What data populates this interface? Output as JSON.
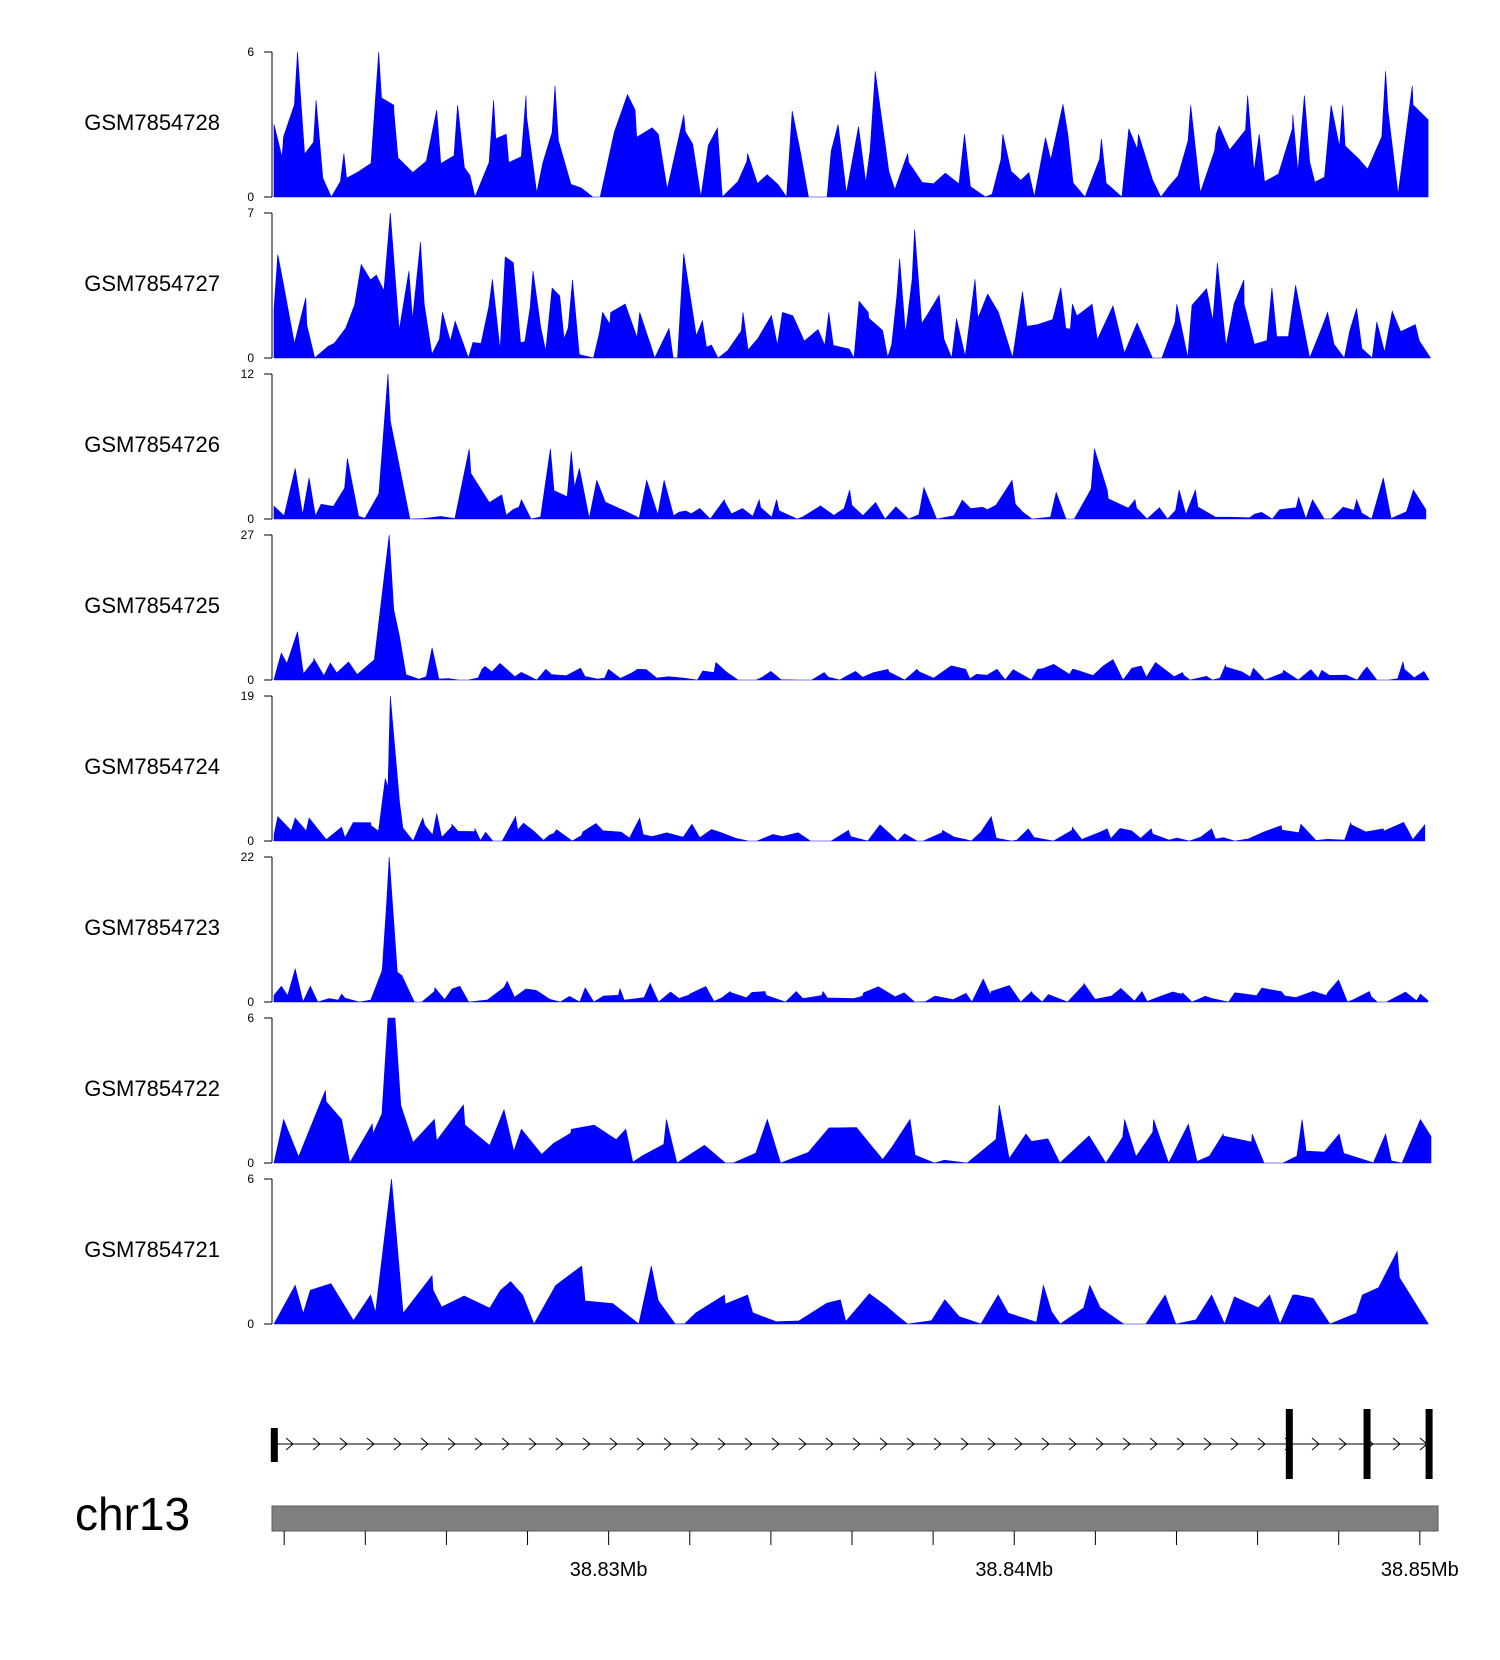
{
  "chart_data": {
    "type": "area",
    "colors": {
      "signal": "#0000ff",
      "axis": "#000000",
      "ideogram": "#808080",
      "gene": "#000000"
    },
    "chromosome": "chr13",
    "x_range_mb": [
      38.8217,
      38.8503
    ],
    "position_ticks_mb": [
      38.822,
      38.824,
      38.826,
      38.828,
      38.83,
      38.832,
      38.834,
      38.836,
      38.838,
      38.84,
      38.842,
      38.844,
      38.846,
      38.848,
      38.85
    ],
    "position_labels": [
      {
        "mb": 38.83,
        "label": "38.83Mb"
      },
      {
        "mb": 38.84,
        "label": "38.84Mb"
      },
      {
        "mb": 38.85,
        "label": "38.85Mb"
      }
    ],
    "tracks": [
      {
        "name": "GSM7854728",
        "ymax": 6,
        "ymin": 0,
        "ymax_label": "6",
        "ymin_label": "0",
        "profile": "dense",
        "peaks": [
          [
            0.01,
            2.5
          ],
          [
            0.022,
            6
          ],
          [
            0.038,
            4
          ],
          [
            0.062,
            1.8
          ],
          [
            0.092,
            6
          ],
          [
            0.105,
            3.8
          ],
          [
            0.142,
            3.6
          ],
          [
            0.16,
            3.8
          ],
          [
            0.191,
            4
          ],
          [
            0.202,
            2.6
          ],
          [
            0.219,
            4.2
          ],
          [
            0.244,
            4.6
          ],
          [
            0.313,
            3.6
          ],
          [
            0.333,
            2.6
          ],
          [
            0.355,
            3.4
          ],
          [
            0.41,
            1.8
          ],
          [
            0.488,
            3
          ],
          [
            0.52,
            5.2
          ],
          [
            0.548,
            1.8
          ],
          [
            0.597,
            2.6
          ],
          [
            0.63,
            2.6
          ],
          [
            0.686,
            2.6
          ],
          [
            0.715,
            2.4
          ],
          [
            0.747,
            2.6
          ],
          [
            0.792,
            3.8
          ],
          [
            0.814,
            2.6
          ],
          [
            0.841,
            4.2
          ],
          [
            0.851,
            2.6
          ],
          [
            0.88,
            3.4
          ],
          [
            0.89,
            4.2
          ],
          [
            0.913,
            3.8
          ],
          [
            0.923,
            3.8
          ],
          [
            0.96,
            5.2
          ],
          [
            0.983,
            4.6
          ]
        ]
      },
      {
        "name": "GSM7854727",
        "ymax": 7,
        "ymin": 0,
        "ymax_label": "7",
        "ymin_label": "0",
        "profile": "dense",
        "peaks": [
          [
            0.005,
            5
          ],
          [
            0.03,
            1.6
          ],
          [
            0.09,
            4
          ],
          [
            0.102,
            7
          ],
          [
            0.118,
            4.2
          ],
          [
            0.128,
            5.6
          ],
          [
            0.147,
            2.2
          ],
          [
            0.19,
            3.8
          ],
          [
            0.208,
            4.6
          ],
          [
            0.225,
            4.2
          ],
          [
            0.248,
            3
          ],
          [
            0.285,
            2.2
          ],
          [
            0.292,
            2.2
          ],
          [
            0.317,
            2.2
          ],
          [
            0.371,
            1.8
          ],
          [
            0.406,
            2.2
          ],
          [
            0.44,
            2.2
          ],
          [
            0.48,
            2.2
          ],
          [
            0.514,
            2.2
          ],
          [
            0.541,
            4.8
          ],
          [
            0.554,
            6.2
          ],
          [
            0.606,
            3.8
          ],
          [
            0.647,
            3.2
          ],
          [
            0.68,
            3.4
          ],
          [
            0.69,
            2.6
          ],
          [
            0.707,
            2.6
          ],
          [
            0.78,
            2.6
          ],
          [
            0.815,
            4.6
          ],
          [
            0.838,
            2.6
          ],
          [
            0.862,
            3.4
          ],
          [
            0.91,
            2.2
          ],
          [
            0.935,
            2.4
          ]
        ]
      },
      {
        "name": "GSM7854726",
        "ymax": 12,
        "ymin": 0,
        "ymax_label": "12",
        "ymin_label": "0",
        "profile": "sparse",
        "peaks": [
          [
            0.02,
            4.2
          ],
          [
            0.032,
            3.4
          ],
          [
            0.065,
            5
          ],
          [
            0.1,
            12
          ],
          [
            0.17,
            5.8
          ],
          [
            0.198,
            2
          ],
          [
            0.215,
            1.6
          ],
          [
            0.24,
            5.8
          ],
          [
            0.258,
            5.6
          ],
          [
            0.265,
            4.2
          ],
          [
            0.28,
            3.2
          ],
          [
            0.323,
            3.2
          ],
          [
            0.338,
            3.2
          ],
          [
            0.39,
            1.6
          ],
          [
            0.42,
            1.6
          ],
          [
            0.435,
            1.6
          ],
          [
            0.498,
            2.4
          ],
          [
            0.562,
            2.6
          ],
          [
            0.638,
            3.2
          ],
          [
            0.676,
            2.2
          ],
          [
            0.709,
            5.8
          ],
          [
            0.72,
            2.4
          ],
          [
            0.744,
            1.6
          ],
          [
            0.782,
            2.4
          ],
          [
            0.796,
            2.4
          ],
          [
            0.885,
            1.8
          ],
          [
            0.897,
            1.6
          ],
          [
            0.935,
            1.6
          ],
          [
            0.958,
            3.4
          ],
          [
            0.984,
            2.4
          ]
        ]
      },
      {
        "name": "GSM7854725",
        "ymax": 27,
        "ymin": 0,
        "ymax_label": "27",
        "ymin_label": "0",
        "profile": "sparse",
        "peaks": [
          [
            0.008,
            5
          ],
          [
            0.022,
            9
          ],
          [
            0.036,
            4
          ],
          [
            0.09,
            7
          ],
          [
            0.101,
            27
          ],
          [
            0.11,
            8
          ],
          [
            0.138,
            6
          ],
          [
            0.181,
            2
          ],
          [
            0.236,
            2
          ],
          [
            0.266,
            2.2
          ],
          [
            0.29,
            2
          ],
          [
            0.315,
            2
          ],
          [
            0.381,
            1.4
          ],
          [
            0.43,
            1.6
          ],
          [
            0.476,
            1.4
          ],
          [
            0.503,
            1.6
          ],
          [
            0.531,
            2
          ],
          [
            0.556,
            2
          ],
          [
            0.598,
            2
          ],
          [
            0.625,
            2
          ],
          [
            0.66,
            2
          ],
          [
            0.69,
            2
          ],
          [
            0.725,
            3.8
          ],
          [
            0.741,
            2.2
          ],
          [
            0.785,
            1.4
          ],
          [
            0.822,
            2.8
          ],
          [
            0.846,
            2.2
          ],
          [
            0.872,
            1.8
          ],
          [
            0.905,
            1.8
          ],
          [
            0.944,
            2.4
          ],
          [
            0.975,
            3.4
          ],
          [
            0.993,
            1.6
          ]
        ]
      },
      {
        "name": "GSM7854724",
        "ymax": 19,
        "ymin": 0,
        "ymax_label": "19",
        "ymin_label": "0",
        "profile": "sparse",
        "peaks": [
          [
            0.005,
            3.2
          ],
          [
            0.02,
            3
          ],
          [
            0.032,
            3
          ],
          [
            0.06,
            1.8
          ],
          [
            0.085,
            2.4
          ],
          [
            0.1,
            7
          ],
          [
            0.102,
            19
          ],
          [
            0.11,
            5
          ],
          [
            0.13,
            3
          ],
          [
            0.142,
            3.6
          ],
          [
            0.155,
            2.2
          ],
          [
            0.175,
            1.6
          ],
          [
            0.21,
            3.2
          ],
          [
            0.243,
            1
          ],
          [
            0.268,
            1.2
          ],
          [
            0.317,
            3
          ],
          [
            0.362,
            2.2
          ],
          [
            0.497,
            1.4
          ],
          [
            0.578,
            1.4
          ],
          [
            0.62,
            3.2
          ],
          [
            0.652,
            1.6
          ],
          [
            0.69,
            1.8
          ],
          [
            0.72,
            1.6
          ],
          [
            0.758,
            1.6
          ],
          [
            0.81,
            1.6
          ],
          [
            0.87,
            2
          ],
          [
            0.887,
            2.2
          ],
          [
            0.93,
            2.4
          ],
          [
            0.958,
            1.6
          ],
          [
            0.98,
            1.2
          ]
        ]
      },
      {
        "name": "GSM7854723",
        "ymax": 22,
        "ymin": 0,
        "ymax_label": "22",
        "ymin_label": "0",
        "profile": "sparse",
        "peaks": [
          [
            0.008,
            2.4
          ],
          [
            0.02,
            5
          ],
          [
            0.033,
            2.4
          ],
          [
            0.06,
            1.2
          ],
          [
            0.095,
            4.8
          ],
          [
            0.101,
            22
          ],
          [
            0.112,
            4
          ],
          [
            0.14,
            1.6
          ],
          [
            0.162,
            2.4
          ],
          [
            0.2,
            2.2
          ],
          [
            0.3,
            2
          ],
          [
            0.326,
            2.8
          ],
          [
            0.36,
            1.2
          ],
          [
            0.395,
            1.6
          ],
          [
            0.425,
            1.6
          ],
          [
            0.452,
            1.6
          ],
          [
            0.475,
            1.6
          ],
          [
            0.51,
            1.4
          ],
          [
            0.545,
            1.4
          ],
          [
            0.62,
            1.6
          ],
          [
            0.655,
            1.6
          ],
          [
            0.7,
            2.8
          ],
          [
            0.75,
            1.6
          ],
          [
            0.785,
            1.4
          ],
          [
            0.83,
            1.4
          ],
          [
            0.87,
            1.6
          ],
          [
            0.91,
            1.4
          ],
          [
            0.946,
            1.6
          ],
          [
            0.99,
            1.2
          ]
        ]
      },
      {
        "name": "GSM7854722",
        "ymax": 6,
        "ymin": 0,
        "ymax_label": "6",
        "ymin_label": "0",
        "profile": "medium",
        "peaks": [
          [
            0.01,
            1.8
          ],
          [
            0.046,
            3
          ],
          [
            0.06,
            1.8
          ],
          [
            0.087,
            1.2
          ],
          [
            0.1,
            6
          ],
          [
            0.106,
            6
          ],
          [
            0.14,
            1.8
          ],
          [
            0.165,
            2.4
          ],
          [
            0.2,
            2.2
          ],
          [
            0.215,
            1.4
          ],
          [
            0.258,
            1.4
          ],
          [
            0.305,
            1.4
          ],
          [
            0.34,
            1.8
          ],
          [
            0.427,
            1.8
          ],
          [
            0.55,
            1.8
          ],
          [
            0.627,
            2.4
          ],
          [
            0.65,
            1.2
          ],
          [
            0.735,
            1.8
          ],
          [
            0.76,
            1.8
          ],
          [
            0.79,
            1.6
          ],
          [
            0.82,
            1.2
          ],
          [
            0.845,
            1.2
          ],
          [
            0.888,
            1.8
          ],
          [
            0.92,
            1.2
          ],
          [
            0.96,
            1.2
          ],
          [
            0.99,
            1.8
          ]
        ]
      },
      {
        "name": "GSM7854721",
        "ymax": 6,
        "ymin": 0,
        "ymax_label": "6",
        "ymin_label": "0",
        "profile": "medium",
        "peaks": [
          [
            0.02,
            1.6
          ],
          [
            0.033,
            1.4
          ],
          [
            0.085,
            1.2
          ],
          [
            0.103,
            6
          ],
          [
            0.138,
            2
          ],
          [
            0.197,
            1.4
          ],
          [
            0.216,
            1.2
          ],
          [
            0.267,
            2.4
          ],
          [
            0.327,
            2.4
          ],
          [
            0.39,
            1.2
          ],
          [
            0.41,
            1.2
          ],
          [
            0.49,
            1
          ],
          [
            0.58,
            1
          ],
          [
            0.626,
            1.2
          ],
          [
            0.665,
            1.6
          ],
          [
            0.705,
            1.6
          ],
          [
            0.77,
            1.2
          ],
          [
            0.81,
            1.2
          ],
          [
            0.86,
            1.2
          ],
          [
            0.88,
            1.2
          ],
          [
            0.94,
            1.2
          ],
          [
            0.97,
            3
          ]
        ]
      }
    ],
    "gene_model": {
      "direction": "+",
      "exons_x": [
        0.002,
        0.877,
        0.944,
        0.9975
      ]
    }
  }
}
